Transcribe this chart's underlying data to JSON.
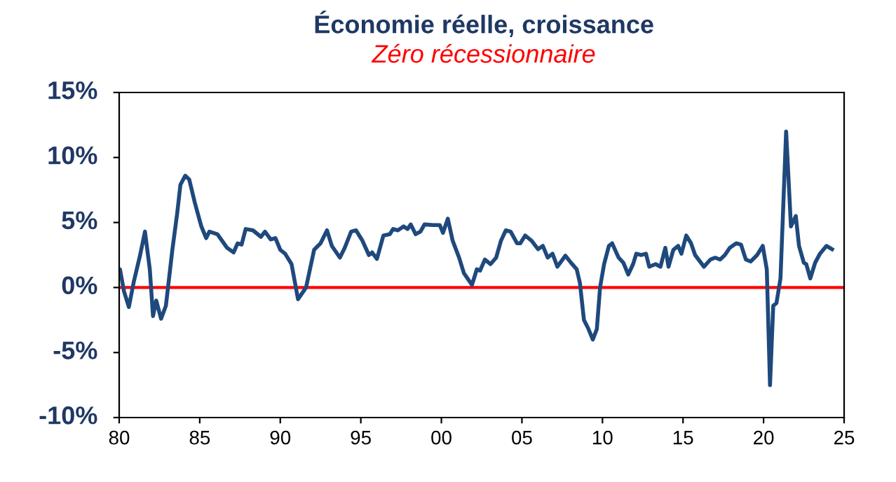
{
  "chart_data": {
    "type": "line",
    "title": "Économie réelle, croissance",
    "subtitle": "Zéro récessionnaire",
    "x": [
      1980.0,
      1980.05,
      1980.3,
      1980.6,
      1980.9,
      1981.3,
      1981.6,
      1981.9,
      1982.1,
      1982.3,
      1982.6,
      1982.9,
      1983.3,
      1983.6,
      1983.8,
      1984.1,
      1984.35,
      1984.7,
      1985.1,
      1985.4,
      1985.6,
      1986.1,
      1986.7,
      1987.1,
      1987.35,
      1987.6,
      1987.85,
      1988.3,
      1988.8,
      1989.05,
      1989.4,
      1989.7,
      1990.0,
      1990.3,
      1990.7,
      1991.1,
      1991.6,
      1992.1,
      1992.5,
      1992.9,
      1993.2,
      1993.7,
      1994.0,
      1994.4,
      1994.7,
      1995.1,
      1995.5,
      1995.7,
      1996.0,
      1996.4,
      1996.8,
      1997.0,
      1997.3,
      1997.65,
      1997.9,
      1998.1,
      1998.4,
      1998.7,
      1998.95,
      1999.5,
      1999.9,
      2000.1,
      2000.4,
      2000.7,
      2001.1,
      2001.4,
      2001.9,
      2002.2,
      2002.4,
      2002.7,
      2003.05,
      2003.4,
      2003.7,
      2004.0,
      2004.3,
      2004.7,
      2004.9,
      2005.2,
      2005.6,
      2006.0,
      2006.3,
      2006.6,
      2006.9,
      2007.2,
      2007.7,
      2008.05,
      2008.4,
      2008.6,
      2008.85,
      2009.1,
      2009.4,
      2009.65,
      2009.85,
      2010.1,
      2010.4,
      2010.6,
      2011.0,
      2011.3,
      2011.6,
      2011.9,
      2012.1,
      2012.4,
      2012.7,
      2012.9,
      2013.3,
      2013.6,
      2013.9,
      2014.1,
      2014.4,
      2014.7,
      2014.9,
      2015.2,
      2015.5,
      2015.75,
      2016.3,
      2016.7,
      2017.0,
      2017.3,
      2017.6,
      2017.9,
      2018.3,
      2018.6,
      2018.9,
      2019.2,
      2019.6,
      2019.95,
      2020.2,
      2020.4,
      2020.6,
      2020.8,
      2021.05,
      2021.4,
      2021.7,
      2022.0,
      2022.2,
      2022.5,
      2022.65,
      2022.9,
      2023.2,
      2023.5,
      2023.9,
      2024.25
    ],
    "series": [
      {
        "color": "#1f497d",
        "values": [
          1.4,
          1.4,
          -0.3,
          -1.5,
          0.4,
          2.5,
          4.3,
          1.4,
          -2.2,
          -1.0,
          -2.4,
          -1.4,
          2.9,
          5.7,
          7.9,
          8.6,
          8.3,
          6.5,
          4.7,
          3.8,
          4.3,
          4.1,
          3.05,
          2.7,
          3.4,
          3.3,
          4.5,
          4.4,
          3.9,
          4.3,
          3.7,
          3.8,
          2.9,
          2.6,
          1.8,
          -0.9,
          0.0,
          2.9,
          3.4,
          4.4,
          3.2,
          2.3,
          3.05,
          4.3,
          4.4,
          3.6,
          2.5,
          2.7,
          2.2,
          4.0,
          4.1,
          4.5,
          4.4,
          4.7,
          4.5,
          4.85,
          4.1,
          4.3,
          4.85,
          4.8,
          4.8,
          4.2,
          5.3,
          3.6,
          2.3,
          1.1,
          0.2,
          1.4,
          1.3,
          2.15,
          1.8,
          2.3,
          3.6,
          4.4,
          4.3,
          3.4,
          3.4,
          4.0,
          3.6,
          2.95,
          3.2,
          2.3,
          2.6,
          1.6,
          2.45,
          1.9,
          1.4,
          0.35,
          -2.5,
          -3.1,
          -4.0,
          -3.2,
          0.0,
          1.8,
          3.2,
          3.4,
          2.3,
          1.9,
          1.0,
          1.8,
          2.6,
          2.5,
          2.6,
          1.6,
          1.8,
          1.6,
          3.05,
          1.6,
          2.9,
          3.2,
          2.6,
          4.0,
          3.4,
          2.5,
          1.6,
          2.15,
          2.3,
          2.15,
          2.5,
          3.05,
          3.4,
          3.3,
          2.15,
          2.0,
          2.5,
          3.2,
          1.4,
          -7.5,
          -1.4,
          -1.2,
          0.7,
          12.0,
          4.7,
          5.5,
          3.2,
          1.9,
          1.8,
          0.7,
          1.9,
          2.6,
          3.2,
          2.95
        ]
      }
    ],
    "xlim": [
      1980,
      2025
    ],
    "xticks": [
      {
        "value": 1980,
        "label": "80"
      },
      {
        "value": 1985,
        "label": "85"
      },
      {
        "value": 1990,
        "label": "90"
      },
      {
        "value": 1995,
        "label": "95"
      },
      {
        "value": 2000,
        "label": "00"
      },
      {
        "value": 2005,
        "label": "05"
      },
      {
        "value": 2010,
        "label": "10"
      },
      {
        "value": 2015,
        "label": "15"
      },
      {
        "value": 2020,
        "label": "20"
      },
      {
        "value": 2025,
        "label": "25"
      }
    ],
    "ylim": [
      -10,
      15
    ],
    "yticks": [
      {
        "value": -10,
        "label": "-10%"
      },
      {
        "value": -5,
        "label": "-5%"
      },
      {
        "value": 0,
        "label": "0%"
      },
      {
        "value": 5,
        "label": "5%"
      },
      {
        "value": 10,
        "label": "10%"
      },
      {
        "value": 15,
        "label": "15%"
      }
    ],
    "ref_lines": [
      {
        "axis": "y",
        "value": 0,
        "color": "#ff0000"
      }
    ],
    "grid": false,
    "legend": false
  }
}
